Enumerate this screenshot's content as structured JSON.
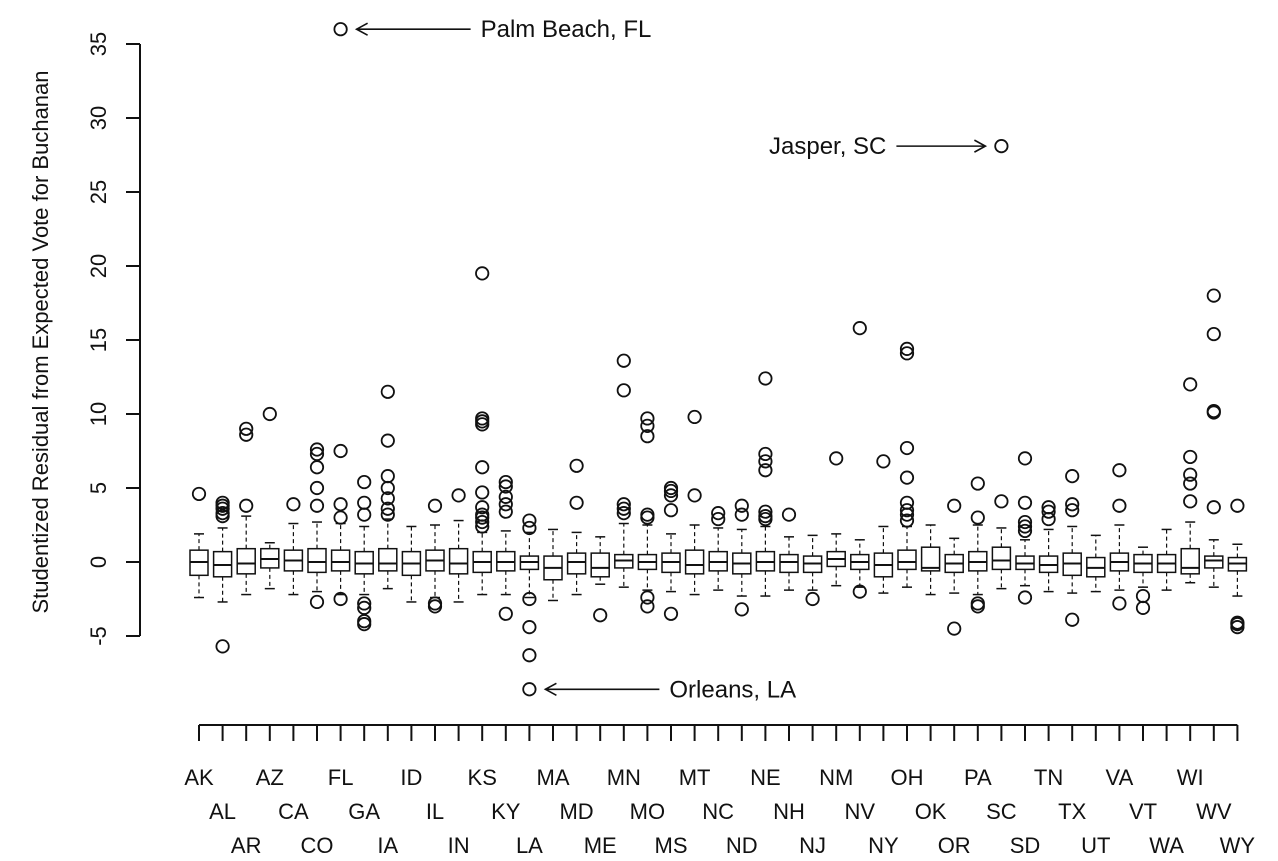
{
  "chart_data": {
    "type": "boxplot",
    "ylabel": "Studentized Residual from Expected Vote for Buchanan",
    "ylim": [
      -8.6,
      36
    ],
    "yticks": [
      -5,
      0,
      5,
      10,
      15,
      20,
      25,
      30,
      35
    ],
    "grid": false,
    "categories": [
      "AK",
      "AL",
      "AR",
      "AZ",
      "CA",
      "CO",
      "FL",
      "GA",
      "IA",
      "ID",
      "IL",
      "IN",
      "KS",
      "KY",
      "LA",
      "MA",
      "MD",
      "ME",
      "MN",
      "MO",
      "MS",
      "MT",
      "NC",
      "ND",
      "NE",
      "NH",
      "NJ",
      "NM",
      "NV",
      "NY",
      "OH",
      "OK",
      "OR",
      "PA",
      "SC",
      "SD",
      "TN",
      "TX",
      "UT",
      "VA",
      "VT",
      "WA",
      "WI",
      "WV",
      "WY"
    ],
    "boxes": [
      {
        "q1": -0.9,
        "median": 0.0,
        "q3": 0.8,
        "lo": -2.4,
        "hi": 1.9,
        "outliers": [
          4.6
        ]
      },
      {
        "q1": -1.0,
        "median": -0.2,
        "q3": 0.7,
        "lo": -2.7,
        "hi": 2.3,
        "outliers": [
          4.0,
          3.8,
          3.6,
          3.3,
          3.1,
          -5.7
        ]
      },
      {
        "q1": -0.8,
        "median": -0.1,
        "q3": 0.9,
        "lo": -2.2,
        "hi": 3.1,
        "outliers": [
          9.0,
          8.6,
          3.8
        ]
      },
      {
        "q1": -0.4,
        "median": 0.2,
        "q3": 0.9,
        "lo": -1.8,
        "hi": 1.3,
        "outliers": [
          10.0
        ]
      },
      {
        "q1": -0.6,
        "median": 0.1,
        "q3": 0.8,
        "lo": -2.2,
        "hi": 2.6,
        "outliers": [
          3.9
        ]
      },
      {
        "q1": -0.7,
        "median": 0.0,
        "q3": 0.9,
        "lo": -2.0,
        "hi": 2.7,
        "outliers": [
          7.6,
          7.3,
          6.4,
          5.0,
          3.8,
          -2.7
        ]
      },
      {
        "q1": -0.6,
        "median": 0.0,
        "q3": 0.8,
        "lo": -2.2,
        "hi": 2.6,
        "outliers": [
          36.0,
          7.5,
          3.9,
          3.0,
          -2.5
        ]
      },
      {
        "q1": -0.8,
        "median": -0.1,
        "q3": 0.7,
        "lo": -2.2,
        "hi": 2.4,
        "outliers": [
          5.4,
          4.0,
          3.2,
          -2.8,
          -3.1,
          -4.0,
          -4.2
        ]
      },
      {
        "q1": -0.6,
        "median": -0.1,
        "q3": 0.9,
        "lo": -1.8,
        "hi": 2.9,
        "outliers": [
          11.5,
          8.2,
          5.8,
          5.0,
          4.3,
          3.6,
          3.2
        ]
      },
      {
        "q1": -0.9,
        "median": -0.1,
        "q3": 0.7,
        "lo": -2.7,
        "hi": 2.4,
        "outliers": []
      },
      {
        "q1": -0.6,
        "median": 0.1,
        "q3": 0.8,
        "lo": -2.4,
        "hi": 2.5,
        "outliers": [
          3.8,
          -2.8,
          -3.0
        ]
      },
      {
        "q1": -0.8,
        "median": -0.1,
        "q3": 0.9,
        "lo": -2.7,
        "hi": 2.8,
        "outliers": [
          4.5
        ]
      },
      {
        "q1": -0.7,
        "median": 0.0,
        "q3": 0.7,
        "lo": -2.2,
        "hi": 2.0,
        "outliers": [
          19.5,
          9.7,
          9.5,
          9.3,
          6.4,
          4.7,
          3.7,
          3.2,
          3.0,
          2.7,
          2.4
        ]
      },
      {
        "q1": -0.6,
        "median": 0.0,
        "q3": 0.7,
        "lo": -2.2,
        "hi": 2.1,
        "outliers": [
          5.4,
          5.1,
          4.4,
          3.9,
          3.4,
          -3.5
        ]
      },
      {
        "q1": -0.5,
        "median": 0.0,
        "q3": 0.4,
        "lo": -2.4,
        "hi": 2.0,
        "outliers": [
          2.8,
          2.3,
          -2.5,
          -4.4,
          -6.3,
          -8.6
        ]
      },
      {
        "q1": -1.2,
        "median": -0.4,
        "q3": 0.4,
        "lo": -2.6,
        "hi": 2.2,
        "outliers": []
      },
      {
        "q1": -0.8,
        "median": 0.0,
        "q3": 0.6,
        "lo": -2.2,
        "hi": 2.0,
        "outliers": [
          6.5,
          4.0
        ]
      },
      {
        "q1": -1.0,
        "median": -0.4,
        "q3": 0.6,
        "lo": -1.5,
        "hi": 1.7,
        "outliers": [
          -3.6
        ]
      },
      {
        "q1": -0.4,
        "median": 0.1,
        "q3": 0.5,
        "lo": -1.7,
        "hi": 2.6,
        "outliers": [
          13.6,
          11.6,
          3.9,
          3.6,
          3.3
        ]
      },
      {
        "q1": -0.5,
        "median": 0.0,
        "q3": 0.5,
        "lo": -1.9,
        "hi": 2.5,
        "outliers": [
          9.7,
          9.2,
          8.5,
          3.2,
          3.0,
          -2.4,
          -3.0
        ]
      },
      {
        "q1": -0.7,
        "median": 0.0,
        "q3": 0.6,
        "lo": -2.0,
        "hi": 1.9,
        "outliers": [
          5.0,
          4.8,
          4.5,
          3.5,
          -3.5
        ]
      },
      {
        "q1": -0.8,
        "median": -0.2,
        "q3": 0.8,
        "lo": -2.2,
        "hi": 2.5,
        "outliers": [
          9.8,
          4.5
        ]
      },
      {
        "q1": -0.6,
        "median": 0.0,
        "q3": 0.7,
        "lo": -1.9,
        "hi": 2.3,
        "outliers": [
          3.3,
          2.9
        ]
      },
      {
        "q1": -0.8,
        "median": -0.1,
        "q3": 0.6,
        "lo": -2.3,
        "hi": 2.2,
        "outliers": [
          3.8,
          3.2,
          -3.2
        ]
      },
      {
        "q1": -0.6,
        "median": 0.0,
        "q3": 0.7,
        "lo": -2.3,
        "hi": 2.4,
        "outliers": [
          12.4,
          7.3,
          6.8,
          6.2,
          3.4,
          3.1,
          2.9
        ]
      },
      {
        "q1": -0.7,
        "median": 0.0,
        "q3": 0.5,
        "lo": -1.9,
        "hi": 1.7,
        "outliers": [
          3.2
        ]
      },
      {
        "q1": -0.7,
        "median": -0.1,
        "q3": 0.4,
        "lo": -1.9,
        "hi": 1.8,
        "outliers": [
          -2.5
        ]
      },
      {
        "q1": -0.3,
        "median": 0.2,
        "q3": 0.7,
        "lo": -1.6,
        "hi": 1.9,
        "outliers": [
          7.0
        ]
      },
      {
        "q1": -0.5,
        "median": 0.0,
        "q3": 0.5,
        "lo": -1.7,
        "hi": 1.5,
        "outliers": [
          15.8,
          -2.0
        ]
      },
      {
        "q1": -1.0,
        "median": -0.2,
        "q3": 0.6,
        "lo": -2.1,
        "hi": 2.4,
        "outliers": [
          6.8
        ]
      },
      {
        "q1": -0.5,
        "median": 0.0,
        "q3": 0.8,
        "lo": -1.7,
        "hi": 2.4,
        "outliers": [
          14.4,
          14.1,
          7.7,
          5.7,
          4.0,
          3.5,
          3.2,
          2.8
        ]
      },
      {
        "q1": -0.6,
        "median": -0.4,
        "q3": 1.0,
        "lo": -2.2,
        "hi": 2.5,
        "outliers": []
      },
      {
        "q1": -0.7,
        "median": -0.1,
        "q3": 0.5,
        "lo": -2.1,
        "hi": 1.6,
        "outliers": [
          3.8,
          -4.5
        ]
      },
      {
        "q1": -0.6,
        "median": 0.0,
        "q3": 0.7,
        "lo": -2.2,
        "hi": 2.5,
        "outliers": [
          5.3,
          3.0,
          -2.8,
          -3.0
        ]
      },
      {
        "q1": -0.5,
        "median": 0.1,
        "q3": 1.0,
        "lo": -1.8,
        "hi": 2.3,
        "outliers": [
          28.1,
          4.1
        ]
      },
      {
        "q1": -0.5,
        "median": -0.1,
        "q3": 0.4,
        "lo": -1.6,
        "hi": 1.5,
        "outliers": [
          7.0,
          4.0,
          2.7,
          2.4,
          2.1,
          -2.4
        ]
      },
      {
        "q1": -0.7,
        "median": -0.2,
        "q3": 0.4,
        "lo": -2.0,
        "hi": 2.2,
        "outliers": [
          3.7,
          3.4,
          2.9
        ]
      },
      {
        "q1": -0.9,
        "median": -0.1,
        "q3": 0.6,
        "lo": -2.1,
        "hi": 2.4,
        "outliers": [
          5.8,
          3.9,
          3.5,
          -3.9
        ]
      },
      {
        "q1": -1.0,
        "median": -0.4,
        "q3": 0.3,
        "lo": -2.0,
        "hi": 1.8,
        "outliers": []
      },
      {
        "q1": -0.6,
        "median": 0.0,
        "q3": 0.6,
        "lo": -1.9,
        "hi": 2.5,
        "outliers": [
          6.2,
          3.8,
          -2.8
        ]
      },
      {
        "q1": -0.7,
        "median": -0.1,
        "q3": 0.5,
        "lo": -1.7,
        "hi": 1.0,
        "outliers": [
          -2.3,
          -3.1
        ]
      },
      {
        "q1": -0.7,
        "median": -0.1,
        "q3": 0.5,
        "lo": -1.9,
        "hi": 2.2,
        "outliers": []
      },
      {
        "q1": -0.8,
        "median": -0.4,
        "q3": 0.9,
        "lo": -1.4,
        "hi": 2.7,
        "outliers": [
          12.0,
          7.1,
          5.9,
          5.3,
          4.1
        ]
      },
      {
        "q1": -0.4,
        "median": 0.1,
        "q3": 0.4,
        "lo": -1.7,
        "hi": 1.5,
        "outliers": [
          18.0,
          15.4,
          10.2,
          10.1,
          3.7
        ]
      },
      {
        "q1": -0.6,
        "median": -0.1,
        "q3": 0.3,
        "lo": -2.3,
        "hi": 1.2,
        "outliers": [
          3.8,
          -4.1,
          -4.2,
          -4.4
        ]
      }
    ],
    "annotations": [
      {
        "text": "Palm Beach, FL",
        "category": "FL",
        "value": 36.0
      },
      {
        "text": "Jasper, SC",
        "category": "SC",
        "value": 28.1
      },
      {
        "text": "Orleans, LA",
        "category": "LA",
        "value": -8.6
      }
    ]
  }
}
